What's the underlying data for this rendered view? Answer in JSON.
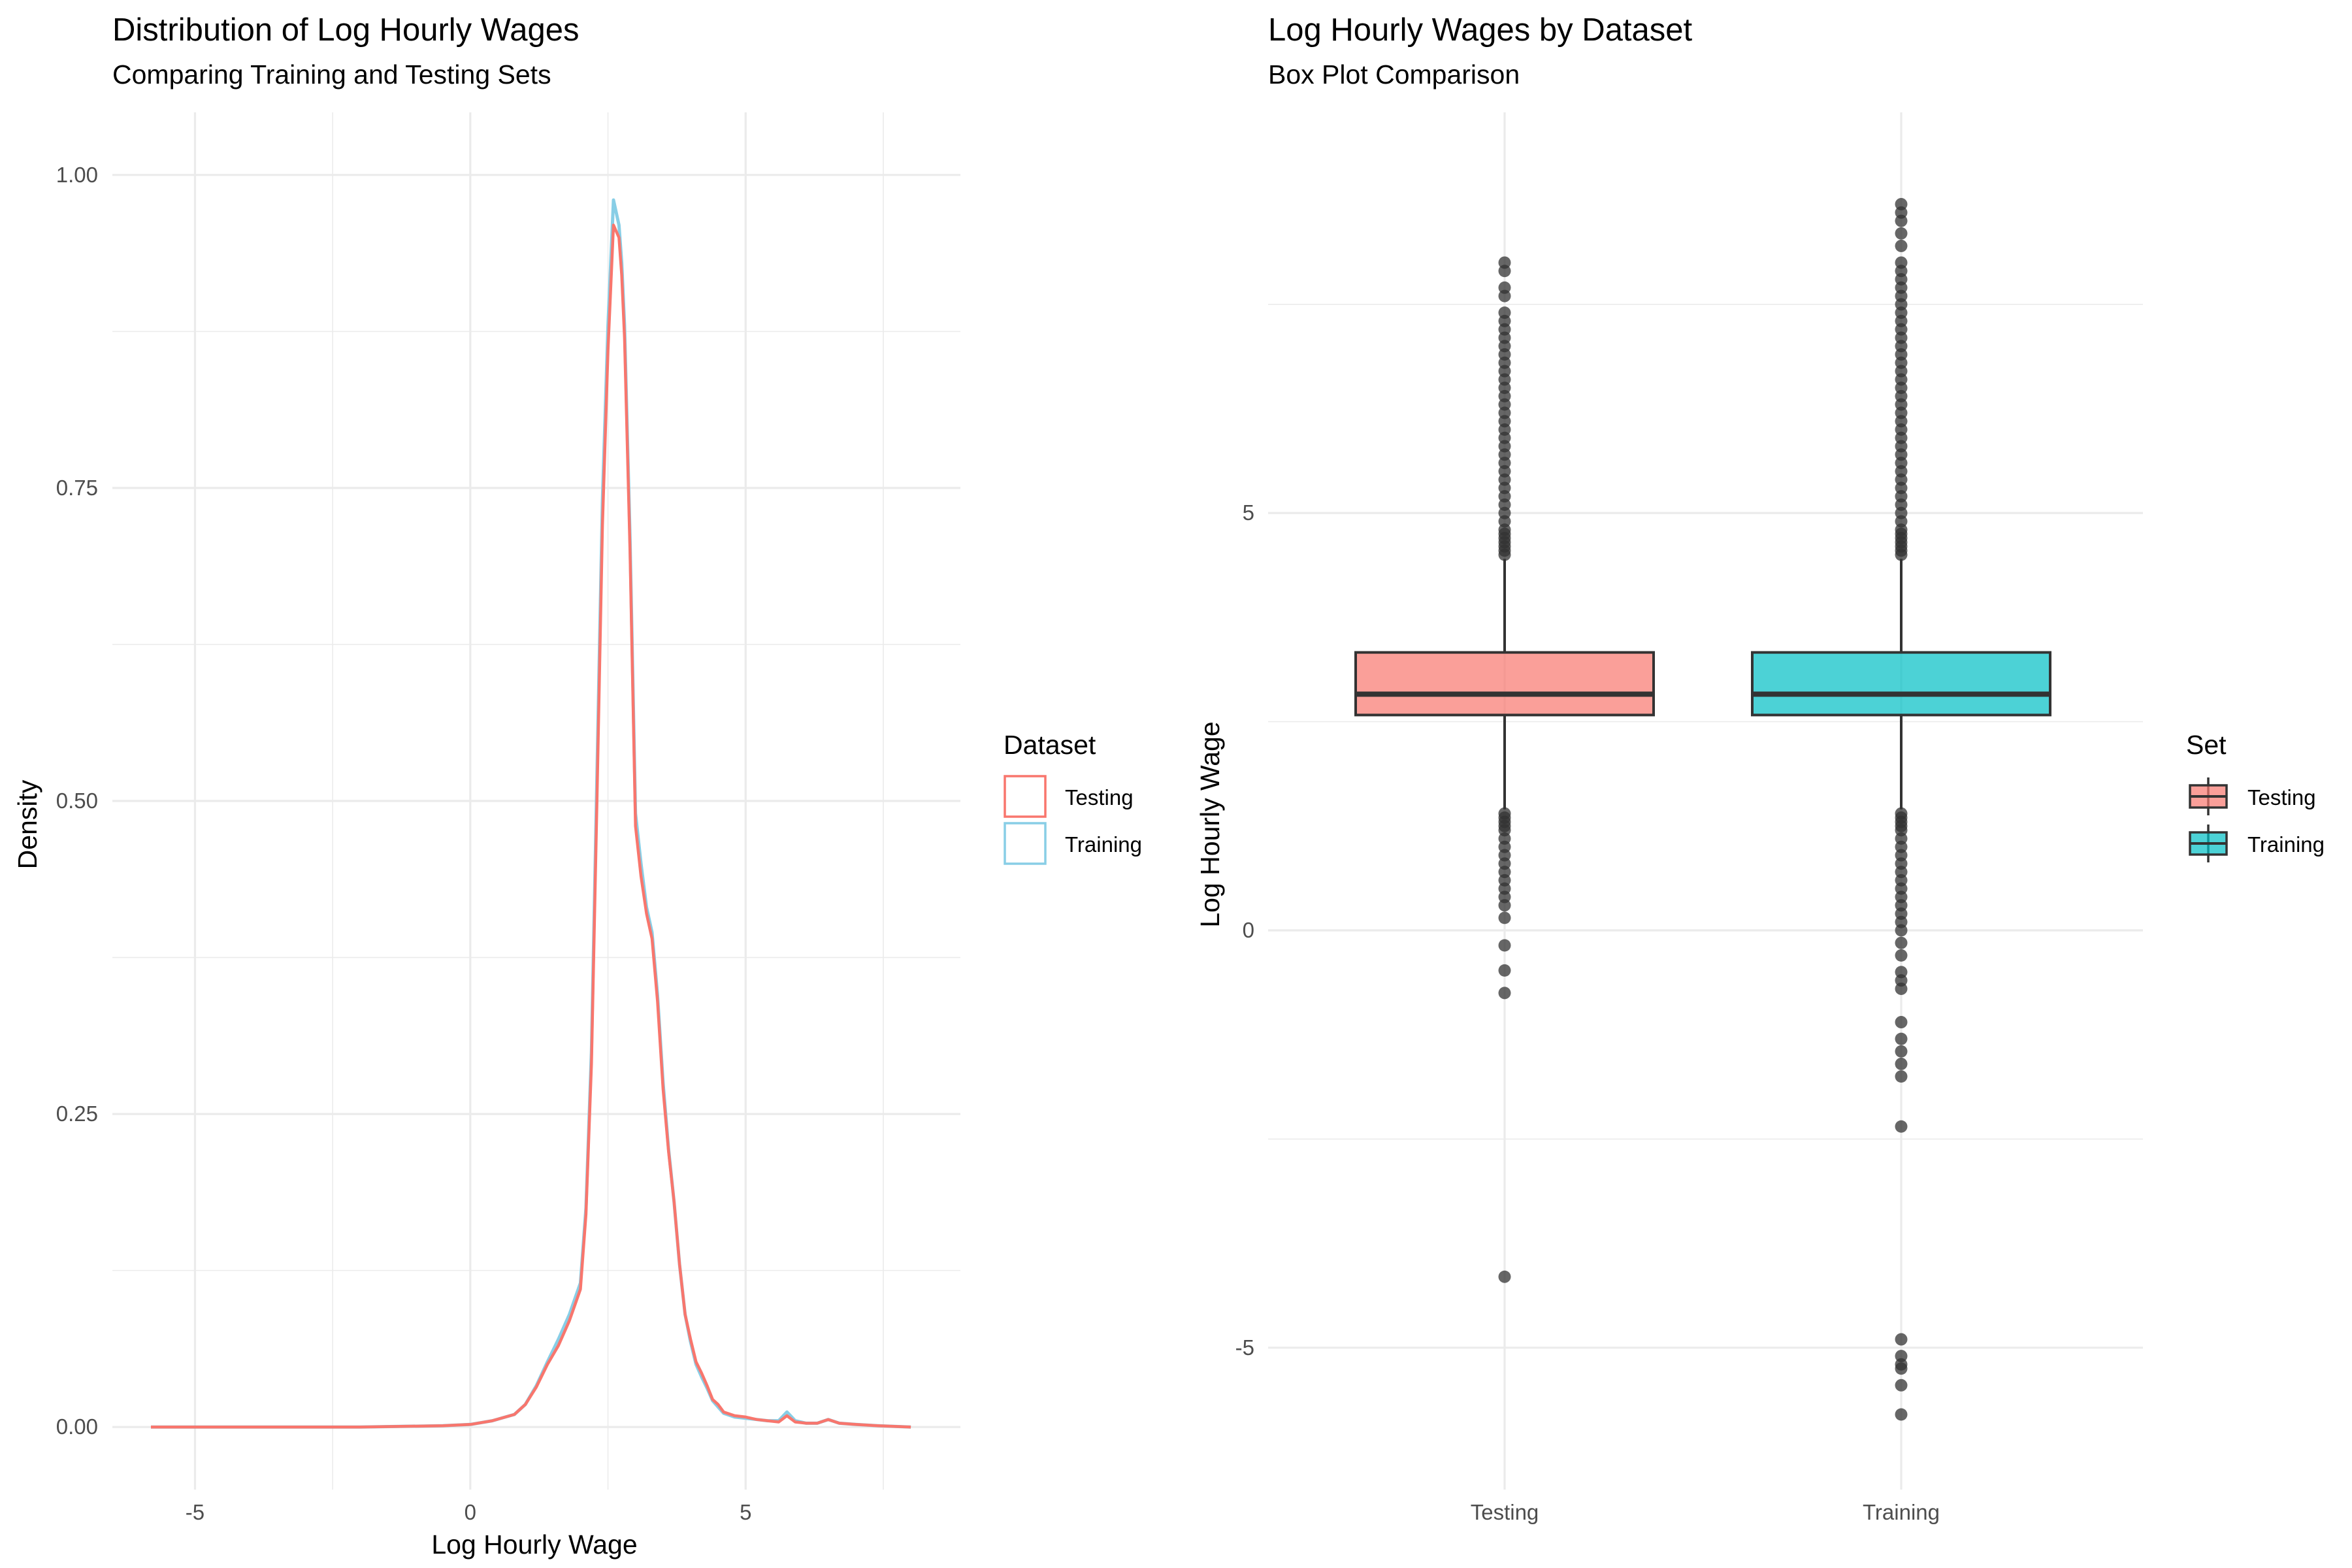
{
  "chart_data": [
    {
      "type": "line",
      "title": "Distribution of Log Hourly Wages",
      "subtitle": "Comparing Training and Testing Sets",
      "xlabel": "Log Hourly Wage",
      "ylabel": "Density",
      "xlim": [
        -6.5,
        8.9
      ],
      "ylim": [
        -0.05,
        1.05
      ],
      "x_ticks": [
        -5,
        0,
        5
      ],
      "y_ticks": [
        0.0,
        0.25,
        0.5,
        0.75,
        1.0
      ],
      "x_tick_labels": [
        "-5",
        "0",
        "5"
      ],
      "y_tick_labels": [
        "0.00",
        "0.25",
        "0.50",
        "0.75",
        "1.00"
      ],
      "grid": true,
      "legend": {
        "title": "Dataset",
        "position": "right"
      },
      "series": [
        {
          "name": "Testing",
          "color": "#F8766D",
          "x": [
            -5.8,
            -4.0,
            -2.0,
            -0.5,
            0.0,
            0.4,
            0.8,
            1.0,
            1.2,
            1.4,
            1.6,
            1.8,
            2.0,
            2.1,
            2.2,
            2.3,
            2.4,
            2.5,
            2.6,
            2.7,
            2.75,
            2.8,
            2.9,
            3.0,
            3.1,
            3.2,
            3.3,
            3.4,
            3.5,
            3.6,
            3.7,
            3.8,
            3.9,
            4.0,
            4.1,
            4.2,
            4.3,
            4.4,
            4.5,
            4.6,
            4.8,
            5.0,
            5.2,
            5.4,
            5.6,
            5.75,
            5.9,
            6.1,
            6.3,
            6.5,
            6.7,
            7.0,
            7.4,
            8.0
          ],
          "y": [
            0.0,
            0.0,
            0.0,
            0.001,
            0.002,
            0.005,
            0.01,
            0.018,
            0.032,
            0.05,
            0.065,
            0.085,
            0.11,
            0.17,
            0.29,
            0.5,
            0.72,
            0.86,
            0.96,
            0.95,
            0.92,
            0.87,
            0.7,
            0.48,
            0.44,
            0.41,
            0.39,
            0.34,
            0.27,
            0.22,
            0.18,
            0.13,
            0.09,
            0.07,
            0.052,
            0.043,
            0.033,
            0.022,
            0.018,
            0.012,
            0.009,
            0.008,
            0.006,
            0.005,
            0.004,
            0.009,
            0.004,
            0.003,
            0.003,
            0.006,
            0.003,
            0.002,
            0.001,
            0.0
          ]
        },
        {
          "name": "Training",
          "color": "#88CEE6",
          "x": [
            -5.8,
            -4.0,
            -2.0,
            -0.5,
            0.0,
            0.4,
            0.8,
            1.0,
            1.2,
            1.4,
            1.6,
            1.8,
            2.0,
            2.1,
            2.2,
            2.3,
            2.4,
            2.5,
            2.6,
            2.7,
            2.75,
            2.8,
            2.9,
            3.0,
            3.1,
            3.2,
            3.3,
            3.4,
            3.5,
            3.6,
            3.7,
            3.8,
            3.9,
            4.0,
            4.1,
            4.2,
            4.3,
            4.4,
            4.5,
            4.6,
            4.8,
            5.0,
            5.2,
            5.4,
            5.6,
            5.75,
            5.9,
            6.1,
            6.3,
            6.5,
            6.7,
            7.0,
            7.4,
            8.0
          ],
          "y": [
            0.0,
            0.0,
            0.0,
            0.001,
            0.002,
            0.005,
            0.01,
            0.018,
            0.033,
            0.052,
            0.07,
            0.09,
            0.115,
            0.175,
            0.3,
            0.52,
            0.74,
            0.88,
            0.98,
            0.96,
            0.93,
            0.88,
            0.71,
            0.49,
            0.45,
            0.415,
            0.395,
            0.345,
            0.275,
            0.222,
            0.18,
            0.13,
            0.09,
            0.068,
            0.05,
            0.04,
            0.031,
            0.021,
            0.016,
            0.011,
            0.008,
            0.007,
            0.006,
            0.005,
            0.005,
            0.012,
            0.005,
            0.003,
            0.003,
            0.006,
            0.003,
            0.002,
            0.001,
            0.0
          ]
        }
      ]
    },
    {
      "type": "box",
      "title": "Log Hourly Wages by Dataset",
      "subtitle": "Box Plot Comparison",
      "xlabel": "",
      "ylabel": "Log Hourly Wage",
      "categories": [
        "Testing",
        "Training"
      ],
      "ylim": [
        -6.7,
        9.8
      ],
      "y_ticks": [
        -5,
        0,
        5
      ],
      "y_tick_labels": [
        "-5",
        "0",
        "5"
      ],
      "grid": true,
      "legend": {
        "title": "Set",
        "position": "right"
      },
      "series": [
        {
          "name": "Testing",
          "color": "#F8766D",
          "q1": 2.58,
          "median": 2.83,
          "q3": 3.33,
          "whisker_low": 1.45,
          "whisker_high": 4.45,
          "outliers": [
            4.5,
            4.55,
            4.6,
            4.65,
            4.7,
            4.75,
            4.8,
            4.9,
            5.0,
            5.1,
            5.2,
            5.3,
            5.4,
            5.5,
            5.6,
            5.7,
            5.8,
            5.9,
            6.0,
            6.1,
            6.2,
            6.3,
            6.4,
            6.5,
            6.6,
            6.7,
            6.8,
            6.9,
            7.0,
            7.1,
            7.2,
            7.3,
            7.4,
            7.6,
            7.7,
            7.9,
            8.0,
            1.4,
            1.35,
            1.3,
            1.25,
            1.2,
            1.1,
            1.0,
            0.9,
            0.8,
            0.7,
            0.6,
            0.5,
            0.4,
            0.3,
            0.15,
            -0.18,
            -0.48,
            -0.75,
            -4.15
          ]
        },
        {
          "name": "Training",
          "color": "#00BFC4",
          "q1": 2.58,
          "median": 2.83,
          "q3": 3.33,
          "whisker_low": 1.45,
          "whisker_high": 4.45,
          "outliers": [
            4.5,
            4.55,
            4.6,
            4.65,
            4.7,
            4.75,
            4.8,
            4.9,
            5.0,
            5.1,
            5.2,
            5.3,
            5.4,
            5.5,
            5.6,
            5.7,
            5.8,
            5.9,
            6.0,
            6.1,
            6.2,
            6.3,
            6.4,
            6.5,
            6.6,
            6.7,
            6.8,
            6.9,
            7.0,
            7.1,
            7.2,
            7.3,
            7.4,
            7.5,
            7.6,
            7.7,
            7.8,
            7.9,
            8.0,
            8.2,
            8.35,
            8.5,
            8.6,
            8.7,
            1.4,
            1.35,
            1.3,
            1.25,
            1.2,
            1.1,
            1.0,
            0.9,
            0.8,
            0.7,
            0.6,
            0.5,
            0.4,
            0.3,
            0.2,
            0.1,
            0.0,
            -0.15,
            -0.3,
            -0.5,
            -0.6,
            -0.7,
            -1.1,
            -1.3,
            -1.45,
            -1.6,
            -1.75,
            -2.35,
            -4.9,
            -5.1,
            -5.2,
            -5.25,
            -5.45,
            -5.8
          ]
        }
      ]
    }
  ]
}
